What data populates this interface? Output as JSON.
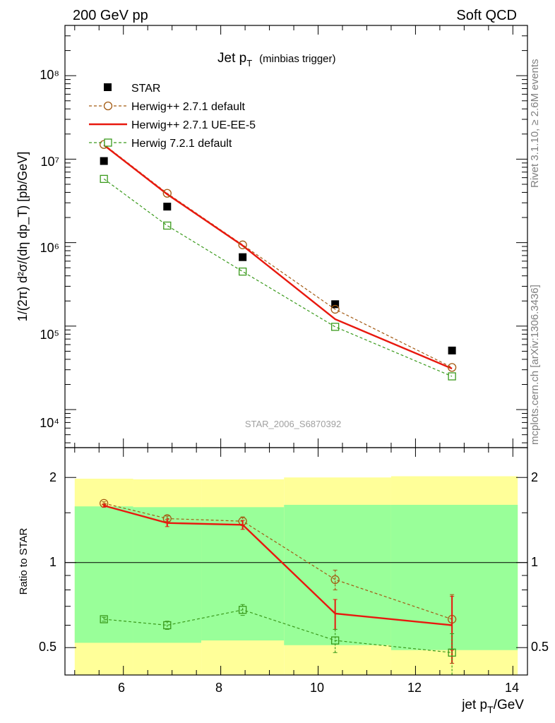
{
  "header": {
    "left": "200 GeV pp",
    "right": "Soft QCD"
  },
  "side": {
    "rivet": "Rivet 3.1.10, ≥ 2.6M events",
    "mcplots": "mcplots.cern.ch [arXiv:1306.3436]"
  },
  "main": {
    "title_main": "Jet p",
    "title_sub": "T",
    "title_note": "(minbias trigger)",
    "ylabel": "1/(2π) d²σ/(dη dp_T) [pb/GeV]",
    "watermark": "STAR_2006_S6870392",
    "yticks": [
      "10⁴",
      "10⁵",
      "10⁶",
      "10⁷",
      "10⁸"
    ]
  },
  "ratio": {
    "ylabel": "Ratio to STAR",
    "yticks": [
      "0.5",
      "1",
      "2"
    ]
  },
  "xaxis": {
    "label_main": "jet p",
    "label_sub": "T",
    "label_unit": "/GeV",
    "ticks": [
      "6",
      "8",
      "10",
      "12",
      "14"
    ]
  },
  "legend": [
    {
      "name": "STAR"
    },
    {
      "name": "Herwig++ 2.7.1 default"
    },
    {
      "name": "Herwig++ 2.7.1 UE-EE-5"
    },
    {
      "name": "Herwig 7.2.1 default"
    }
  ],
  "colors": {
    "data": "#000000",
    "herwig_default": "#a35a12",
    "herwig_ueee5": "#e8180e",
    "herwig7": "#3a9a1c",
    "band_inner": "#99ff99",
    "band_outer": "#ffff99"
  },
  "chart_data": [
    {
      "type": "scatter",
      "title": "Jet pT (minbias trigger)",
      "xlabel": "jet pT/GeV",
      "ylabel": "1/(2π) d²σ/(dη dpT) [pb/GeV]",
      "yscale": "log",
      "xlim": [
        4.8,
        14.3
      ],
      "ylim": [
        3500,
        400000000
      ],
      "legend_position": "top-left",
      "series": [
        {
          "name": "STAR",
          "x": [
            5.6,
            6.9,
            8.45,
            10.35,
            12.75
          ],
          "y": [
            9500000,
            2700000,
            670000,
            183000,
            51000
          ],
          "marker": "filled-square"
        },
        {
          "name": "Herwig++ 2.7.1 default",
          "x": [
            5.6,
            6.9,
            8.45,
            10.35,
            12.75
          ],
          "y": [
            15000000,
            3900000,
            940000,
            159000,
            32000
          ],
          "marker": "open-circle",
          "line": "dashed"
        },
        {
          "name": "Herwig++ 2.7.1 UE-EE-5",
          "x": [
            5.6,
            6.9,
            8.45,
            10.35,
            12.75
          ],
          "y": [
            14700000,
            3800000,
            920000,
            121000,
            31000
          ],
          "marker": "none",
          "line": "solid"
        },
        {
          "name": "Herwig 7.2.1 default",
          "x": [
            5.6,
            6.9,
            8.45,
            10.35,
            12.75
          ],
          "y": [
            5800000,
            1600000,
            450000,
            98000,
            25000
          ],
          "marker": "open-square",
          "line": "dashed"
        }
      ]
    },
    {
      "type": "line",
      "ylabel": "Ratio to STAR",
      "yscale": "log",
      "xlim": [
        4.8,
        14.3
      ],
      "ylim": [
        0.4,
        2.55
      ],
      "bands": {
        "edges": [
          5.0,
          6.2,
          7.6,
          9.3,
          11.5,
          14.1
        ],
        "inner": [
          [
            0.52,
            1.58
          ],
          [
            0.52,
            1.57
          ],
          [
            0.53,
            1.57
          ],
          [
            0.51,
            1.6
          ],
          [
            0.49,
            1.6
          ]
        ],
        "outer": [
          [
            0.34,
            1.98
          ],
          [
            0.34,
            1.97
          ],
          [
            0.34,
            1.97
          ],
          [
            0.34,
            2.0
          ],
          [
            0.34,
            2.02
          ]
        ]
      },
      "series": [
        {
          "name": "Herwig++ 2.7.1 default",
          "x": [
            5.6,
            6.9,
            8.45,
            10.35,
            12.75
          ],
          "y": [
            1.62,
            1.43,
            1.4,
            0.87,
            0.63
          ],
          "err": [
            0.02,
            0.03,
            0.05,
            0.07,
            0.14
          ]
        },
        {
          "name": "Herwig++ 2.7.1 UE-EE-5",
          "x": [
            5.6,
            6.9,
            8.45,
            10.35,
            12.75
          ],
          "y": [
            1.59,
            1.38,
            1.36,
            0.66,
            0.6
          ],
          "err": [
            0.02,
            0.04,
            0.05,
            0.08,
            0.16
          ]
        },
        {
          "name": "Herwig 7.2.1 default",
          "x": [
            5.6,
            6.9,
            8.45,
            10.35,
            12.75
          ],
          "y": [
            0.63,
            0.6,
            0.68,
            0.53,
            0.48
          ],
          "err": [
            0.01,
            0.02,
            0.03,
            0.05,
            0.08
          ]
        }
      ]
    }
  ]
}
